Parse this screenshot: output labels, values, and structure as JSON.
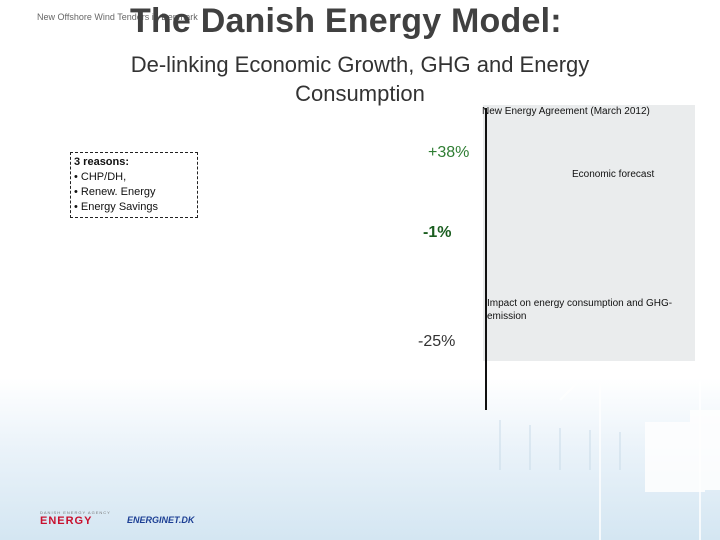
{
  "header_note": "New Offshore Wind Tenders in Denmark",
  "title": "The Danish Energy Model:",
  "subtitle": "De-linking Economic Growth, GHG and Energy Consumption",
  "reasons": {
    "heading": "3 reasons:",
    "items": [
      "• CHP/DH,",
      "• Renew. Energy",
      "• Energy Savings"
    ]
  },
  "chart_data": {
    "type": "line",
    "annotations": [
      "+38%",
      "-1%",
      "-25%"
    ],
    "agreement_label": "New Energy Agreement (March 2012)",
    "economic_label": "Economic forecast",
    "impact_label": "Impact on energy consumption and GHG-emission"
  },
  "logos": {
    "energy": "ENERGY",
    "energy_small": "DANISH ENERGY AGENCY",
    "energinet": "ENERGINET.DK"
  },
  "colors": {
    "pct_38": "#2e7d32",
    "pct_minus1": "#1b5e20",
    "panel": "#eaeced"
  }
}
